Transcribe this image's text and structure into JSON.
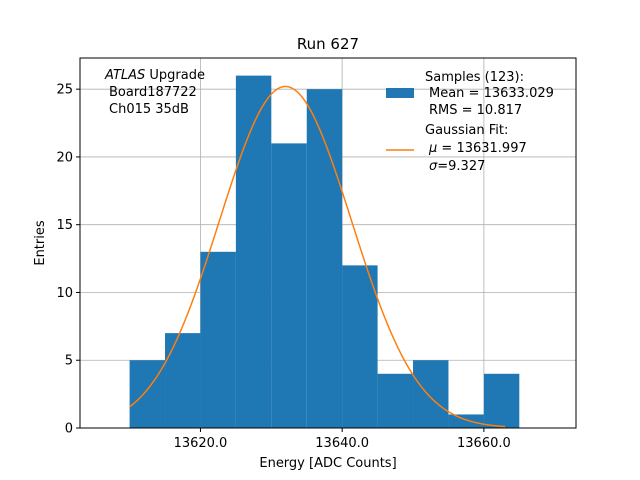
{
  "chart_data": {
    "type": "bar",
    "title": "Run 627",
    "xlabel": "Energy [ADC Counts]",
    "ylabel": "Entries",
    "xlim": [
      13603,
      13673
    ],
    "ylim": [
      0,
      27.3
    ],
    "xticks": [
      13620.0,
      13640.0,
      13660.0
    ],
    "xtick_labels": [
      "13620.0",
      "13640.0",
      "13660.0"
    ],
    "yticks": [
      0,
      5,
      10,
      15,
      20,
      25
    ],
    "ytick_labels": [
      "0",
      "5",
      "10",
      "15",
      "20",
      "25"
    ],
    "grid": true,
    "histogram": {
      "bin_edges": [
        13610,
        13615,
        13620,
        13625,
        13630,
        13635,
        13640,
        13645,
        13650,
        13655,
        13660,
        13665
      ],
      "counts": [
        5,
        7,
        13,
        26,
        21,
        25,
        12,
        4,
        5,
        1,
        4
      ],
      "color": "#1f77b4"
    },
    "gaussian_fit": {
      "mu": 13631.997,
      "sigma": 9.327,
      "amplitude": 25.2,
      "x_range": [
        13610,
        13663
      ],
      "color": "#ff7f0e"
    },
    "info_text": {
      "line1_italic": "ATLAS",
      "line1_rest": " Upgrade",
      "line2": "Board187722",
      "line3": "Ch015 35dB"
    },
    "legend": {
      "placement": "top-right",
      "samples_title": "Samples (123):",
      "samples_mean": "Mean = 13633.029",
      "samples_rms": "RMS = 10.817",
      "fit_title": "Gaussian Fit:",
      "fit_mu_symbol": "μ",
      "fit_mu_value": " = 13631.997",
      "fit_sigma_symbol": "σ",
      "fit_sigma_value": "=9.327"
    }
  }
}
